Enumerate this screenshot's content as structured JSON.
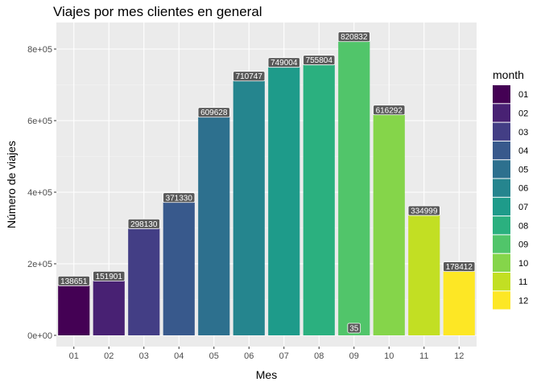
{
  "chart_data": {
    "type": "bar",
    "title": "Viajes por mes clientes en general",
    "xlabel": "Mes",
    "ylabel": "Número de viajes",
    "categories": [
      "01",
      "02",
      "03",
      "04",
      "05",
      "06",
      "07",
      "08",
      "09",
      "10",
      "11",
      "12"
    ],
    "values": [
      138651,
      151901,
      298130,
      371330,
      609628,
      710747,
      749004,
      755804,
      820832,
      616292,
      334999,
      178412
    ],
    "extra_labels": [
      {
        "category": "09",
        "value": 35,
        "label": "35"
      }
    ],
    "ylim": [
      0,
      860000
    ],
    "yticks": [
      0,
      200000,
      400000,
      600000,
      800000
    ],
    "ytick_labels": [
      "0e+00",
      "2e+05",
      "4e+05",
      "6e+05",
      "8e+05"
    ],
    "grid": true,
    "legend": {
      "title": "month",
      "position": "right",
      "entries": [
        "01",
        "02",
        "03",
        "04",
        "05",
        "06",
        "07",
        "08",
        "09",
        "10",
        "11",
        "12"
      ]
    },
    "colors": [
      "#440154",
      "#482173",
      "#433E85",
      "#38598C",
      "#2D708E",
      "#25858E",
      "#1E9B8A",
      "#2BB07F",
      "#51C56A",
      "#85D54A",
      "#C2DF23",
      "#FDE725"
    ],
    "panel_background": "#ebebeb",
    "label_background": "#595959"
  }
}
